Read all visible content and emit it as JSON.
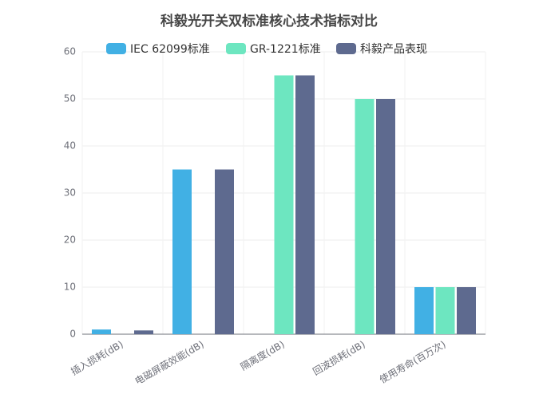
{
  "chart_data": {
    "type": "bar",
    "title": "科毅光开关双标准核心技术指标对比",
    "categories": [
      "插入损耗(dB)",
      "电磁屏蔽效能(dB)",
      "隔离度(dB)",
      "回波损耗(dB)",
      "使用寿命(百万次)"
    ],
    "series": [
      {
        "name": "IEC 62099标准",
        "color": "#41b0e4",
        "values": [
          1,
          35,
          null,
          null,
          10
        ]
      },
      {
        "name": "GR-1221标准",
        "color": "#6de6c0",
        "values": [
          null,
          null,
          55,
          50,
          10
        ]
      },
      {
        "name": "科毅产品表现",
        "color": "#5e6a8f",
        "values": [
          0.8,
          35,
          55,
          50,
          10
        ]
      }
    ],
    "ylim": [
      0,
      60
    ],
    "yticks": [
      0,
      10,
      20,
      30,
      40,
      50,
      60
    ],
    "grid": true
  }
}
